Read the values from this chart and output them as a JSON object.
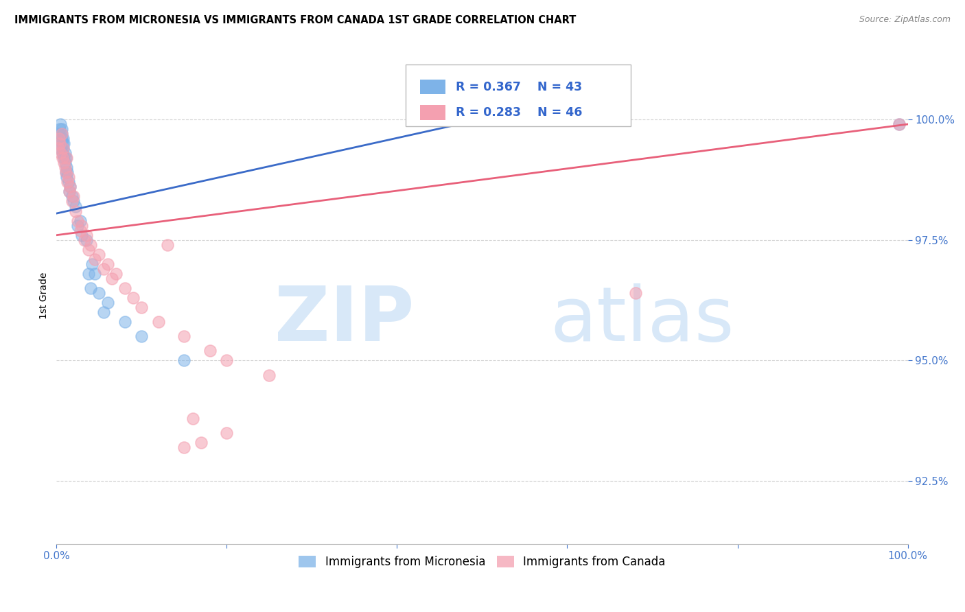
{
  "title": "IMMIGRANTS FROM MICRONESIA VS IMMIGRANTS FROM CANADA 1ST GRADE CORRELATION CHART",
  "source": "Source: ZipAtlas.com",
  "ylabel": "1st Grade",
  "y_ticks": [
    92.5,
    95.0,
    97.5,
    100.0
  ],
  "x_range": [
    0.0,
    1.0
  ],
  "y_range": [
    91.2,
    101.5
  ],
  "blue_R": 0.367,
  "blue_N": 43,
  "pink_R": 0.283,
  "pink_N": 46,
  "blue_color": "#7EB3E8",
  "pink_color": "#F4A0B0",
  "blue_line_color": "#3B6BC8",
  "pink_line_color": "#E8607A",
  "legend_label_blue": "Immigrants from Micronesia",
  "legend_label_pink": "Immigrants from Canada",
  "blue_scatter_x": [
    0.002,
    0.003,
    0.004,
    0.004,
    0.005,
    0.005,
    0.006,
    0.006,
    0.006,
    0.007,
    0.007,
    0.008,
    0.008,
    0.009,
    0.009,
    0.01,
    0.01,
    0.011,
    0.011,
    0.012,
    0.012,
    0.013,
    0.014,
    0.015,
    0.016,
    0.018,
    0.02,
    0.022,
    0.025,
    0.028,
    0.03,
    0.035,
    0.038,
    0.04,
    0.042,
    0.045,
    0.05,
    0.055,
    0.06,
    0.08,
    0.1,
    0.15,
    0.99
  ],
  "blue_scatter_y": [
    99.5,
    99.7,
    99.6,
    99.8,
    99.4,
    99.9,
    99.6,
    99.7,
    99.8,
    99.5,
    99.3,
    99.4,
    99.6,
    99.2,
    99.5,
    99.1,
    99.3,
    98.9,
    99.2,
    98.8,
    99.0,
    98.9,
    98.7,
    98.5,
    98.6,
    98.4,
    98.3,
    98.2,
    97.8,
    97.9,
    97.6,
    97.5,
    96.8,
    96.5,
    97.0,
    96.8,
    96.4,
    96.0,
    96.2,
    95.8,
    95.5,
    95.0,
    99.9
  ],
  "pink_scatter_x": [
    0.002,
    0.003,
    0.004,
    0.005,
    0.006,
    0.007,
    0.008,
    0.009,
    0.01,
    0.011,
    0.012,
    0.013,
    0.014,
    0.015,
    0.016,
    0.018,
    0.02,
    0.022,
    0.025,
    0.028,
    0.03,
    0.033,
    0.035,
    0.038,
    0.04,
    0.045,
    0.05,
    0.055,
    0.06,
    0.065,
    0.07,
    0.08,
    0.09,
    0.1,
    0.12,
    0.13,
    0.15,
    0.18,
    0.2,
    0.25,
    0.15,
    0.2,
    0.17,
    0.16,
    0.99,
    0.68
  ],
  "pink_scatter_y": [
    99.4,
    99.6,
    99.5,
    99.3,
    99.7,
    99.2,
    99.4,
    99.1,
    99.0,
    98.9,
    99.2,
    98.7,
    98.8,
    98.5,
    98.6,
    98.3,
    98.4,
    98.1,
    97.9,
    97.7,
    97.8,
    97.5,
    97.6,
    97.3,
    97.4,
    97.1,
    97.2,
    96.9,
    97.0,
    96.7,
    96.8,
    96.5,
    96.3,
    96.1,
    95.8,
    97.4,
    95.5,
    95.2,
    95.0,
    94.7,
    93.2,
    93.5,
    93.3,
    93.8,
    99.9,
    96.4
  ],
  "blue_line_x0": 0.0,
  "blue_line_y0": 98.05,
  "blue_line_x1": 0.55,
  "blue_line_y1": 100.2,
  "pink_line_x0": 0.0,
  "pink_line_y0": 97.6,
  "pink_line_x1": 1.0,
  "pink_line_y1": 99.9
}
